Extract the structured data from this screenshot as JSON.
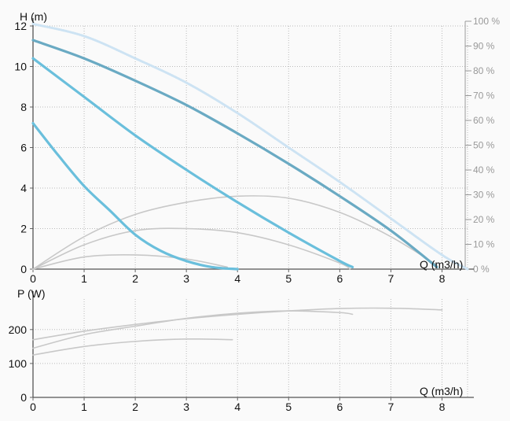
{
  "chart_data": [
    {
      "type": "line",
      "title": "",
      "ylabel": "H (m)",
      "xlabel": "Q (m3/h)",
      "xlim": [
        0,
        8.5
      ],
      "ylim": [
        0,
        12
      ],
      "xticks": [
        "0",
        "1",
        "2",
        "3",
        "4",
        "5",
        "6",
        "7",
        "8"
      ],
      "yticks": [
        "0",
        "2",
        "4",
        "6",
        "8",
        "10",
        "12"
      ],
      "secondary_ylabel_ticks": [
        "0 %",
        "10 %",
        "20 %",
        "30 %",
        "40 %",
        "50 %",
        "60 %",
        "70 %",
        "80 %",
        "90 %",
        "100 %"
      ],
      "grid": true,
      "series": [
        {
          "role": "head",
          "color": "#6aaac3",
          "x": [
            0,
            1,
            2,
            3,
            4,
            5,
            6,
            7,
            7.9
          ],
          "y": [
            11.3,
            10.4,
            9.3,
            8.1,
            6.7,
            5.2,
            3.6,
            1.9,
            0.1
          ]
        },
        {
          "role": "head",
          "color": "#6abfdc",
          "x": [
            0,
            1,
            2,
            3,
            4,
            5,
            6,
            6.25
          ],
          "y": [
            10.4,
            8.5,
            6.6,
            4.9,
            3.3,
            1.8,
            0.4,
            0.1
          ]
        },
        {
          "role": "head",
          "color": "#6abfdc",
          "x": [
            0,
            0.5,
            1,
            1.5,
            2,
            2.5,
            3,
            3.5,
            4
          ],
          "y": [
            7.2,
            5.6,
            4.1,
            2.9,
            1.7,
            0.9,
            0.4,
            0.1,
            0
          ]
        },
        {
          "role": "max",
          "color": "#cde3f3",
          "dashed": true,
          "x": [
            0,
            1,
            2,
            3,
            4,
            5,
            6,
            7,
            8,
            8.5
          ],
          "y": [
            12.1,
            11.5,
            10.4,
            9.2,
            7.7,
            6.0,
            4.3,
            2.5,
            0.7,
            0
          ]
        },
        {
          "role": "efficiency",
          "color": "#c8c8c8",
          "x": [
            0,
            1,
            2,
            3,
            4,
            5,
            6,
            7,
            7.9
          ],
          "y": [
            0,
            1.6,
            2.7,
            3.3,
            3.6,
            3.5,
            2.8,
            1.6,
            0.2
          ]
        },
        {
          "role": "efficiency",
          "color": "#c8c8c8",
          "x": [
            0,
            1,
            2,
            3,
            4,
            5,
            6,
            6.2
          ],
          "y": [
            0,
            1.2,
            1.9,
            2.0,
            1.8,
            1.2,
            0.3,
            0
          ]
        },
        {
          "role": "efficiency",
          "color": "#c8c8c8",
          "x": [
            0,
            1,
            2,
            3,
            3.8
          ],
          "y": [
            0,
            0.6,
            0.7,
            0.5,
            0.1
          ]
        }
      ]
    },
    {
      "type": "line",
      "title": "",
      "ylabel": "P (W)",
      "xlabel": "Q (m3/h)",
      "xlim": [
        0,
        8.5
      ],
      "ylim": [
        0,
        290
      ],
      "xticks": [
        "0",
        "1",
        "2",
        "3",
        "4",
        "5",
        "6",
        "7",
        "8"
      ],
      "yticks": [
        "0",
        "100",
        "200"
      ],
      "grid": true,
      "series": [
        {
          "role": "power",
          "color": "#c8c8c8",
          "x": [
            0,
            1,
            2,
            3,
            4,
            5,
            6,
            7,
            8
          ],
          "y": [
            170,
            195,
            215,
            232,
            245,
            255,
            262,
            263,
            258
          ]
        },
        {
          "role": "power",
          "color": "#c8c8c8",
          "x": [
            0,
            1,
            2,
            3,
            4,
            5,
            6,
            6.25
          ],
          "y": [
            145,
            185,
            210,
            233,
            248,
            255,
            250,
            245
          ]
        },
        {
          "role": "power",
          "color": "#c8c8c8",
          "x": [
            0,
            1,
            2,
            3,
            3.9
          ],
          "y": [
            125,
            150,
            165,
            172,
            170
          ]
        }
      ]
    }
  ]
}
